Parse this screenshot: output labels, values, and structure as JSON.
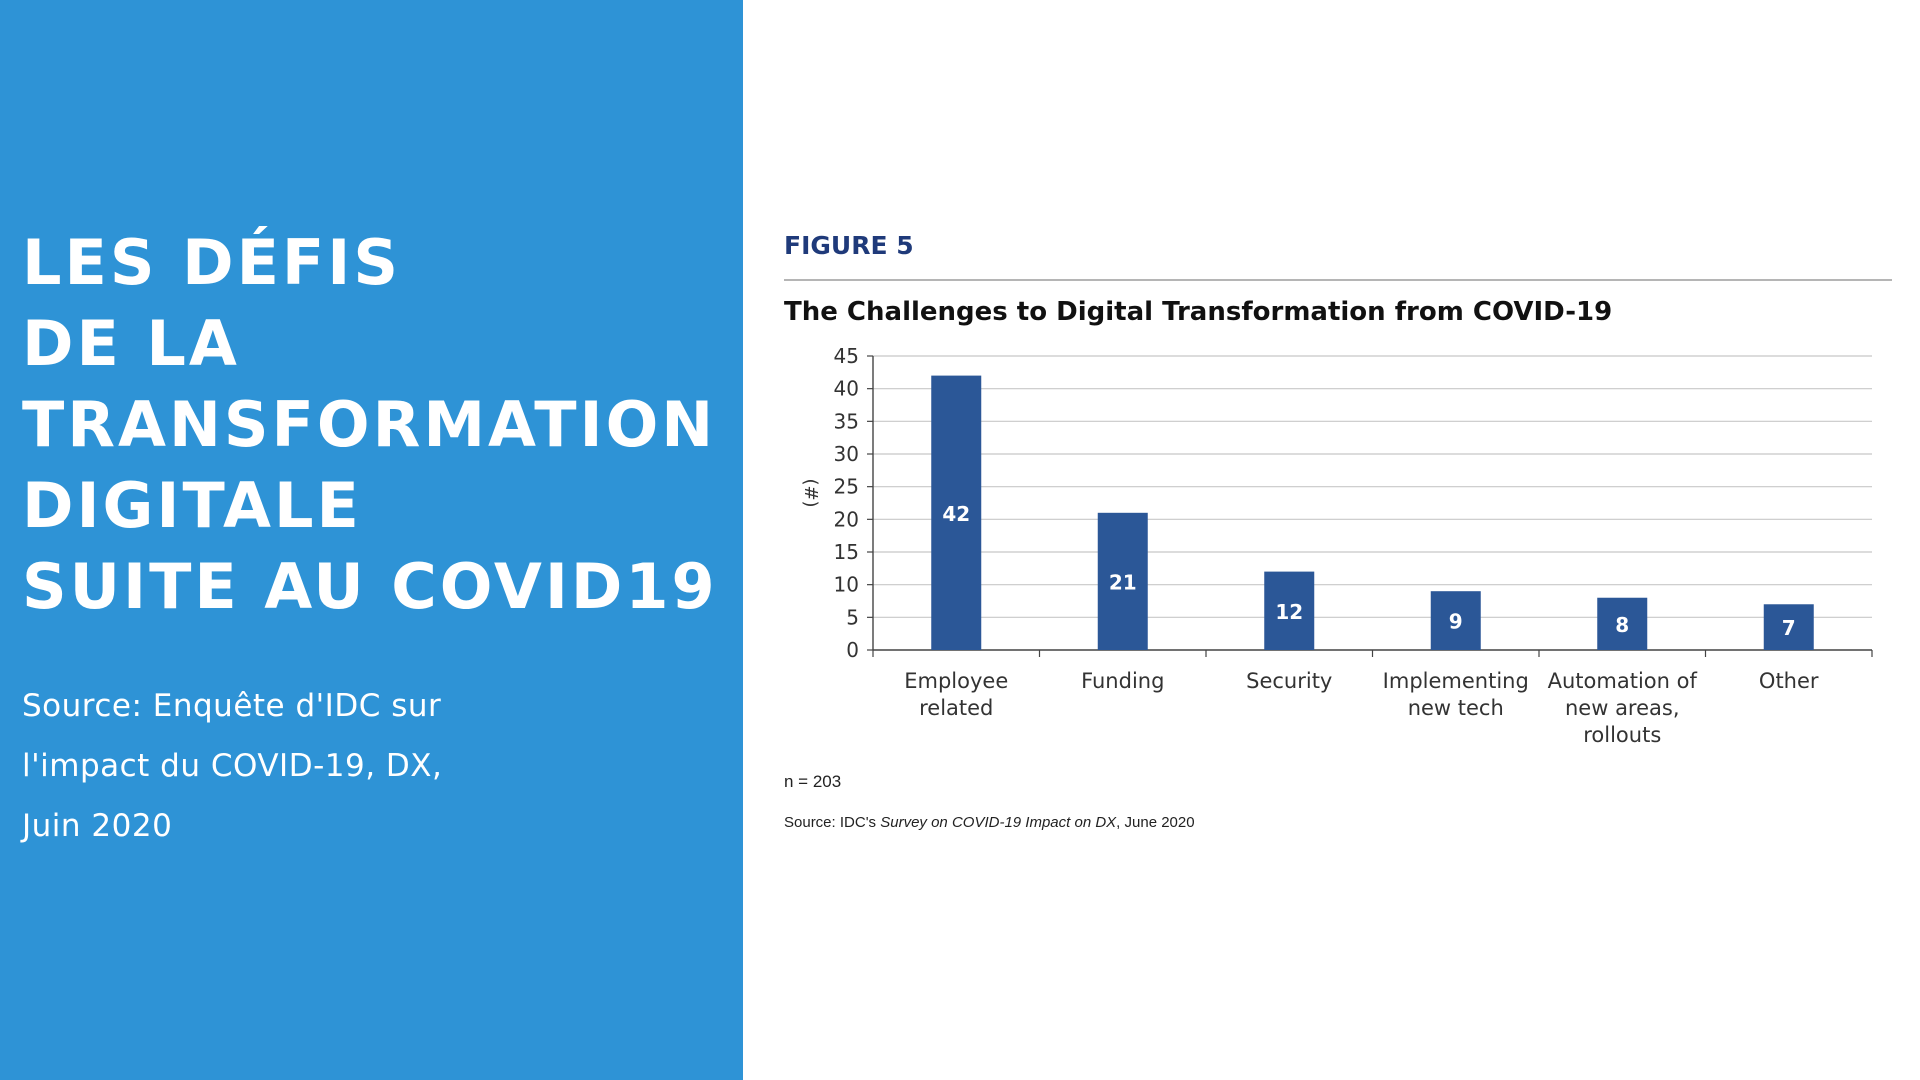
{
  "left_panel": {
    "headline_lines": [
      "LES DÉFIS",
      "DE LA",
      "TRANSFORMATION",
      "DIGITALE",
      "SUITE AU COVID19"
    ],
    "source_lines": [
      "Source: Enquête d'IDC sur",
      "l'impact du COVID-19, DX,",
      "Juin 2020"
    ],
    "background_color": "#2e93d6",
    "text_color": "#ffffff"
  },
  "figure": {
    "label": "FIGURE 5",
    "sample_note": "n = 203",
    "source_prefix": "Source: IDC's ",
    "source_title": "Survey on COVID-19 Impact on DX",
    "source_suffix": ", June 2020"
  },
  "chart_data": {
    "type": "bar",
    "title": "The Challenges to Digital Transformation from COVID-19",
    "ylabel": "(#)",
    "xlabel": "",
    "categories": [
      [
        "Employee",
        "related"
      ],
      [
        "Funding"
      ],
      [
        "Security"
      ],
      [
        "Implementing",
        "new tech"
      ],
      [
        "Automation of",
        "new areas,",
        "rollouts"
      ],
      [
        "Other"
      ]
    ],
    "values": [
      42,
      21,
      12,
      9,
      8,
      7
    ],
    "data_labels": [
      "42",
      "21",
      "12",
      "9",
      "8",
      "7"
    ],
    "ylim": [
      0,
      45
    ],
    "yticks": [
      0,
      5,
      10,
      15,
      20,
      25,
      30,
      35,
      40,
      45
    ],
    "grid": true,
    "bar_color": "#2b5797",
    "label_color": "#ffffff"
  }
}
